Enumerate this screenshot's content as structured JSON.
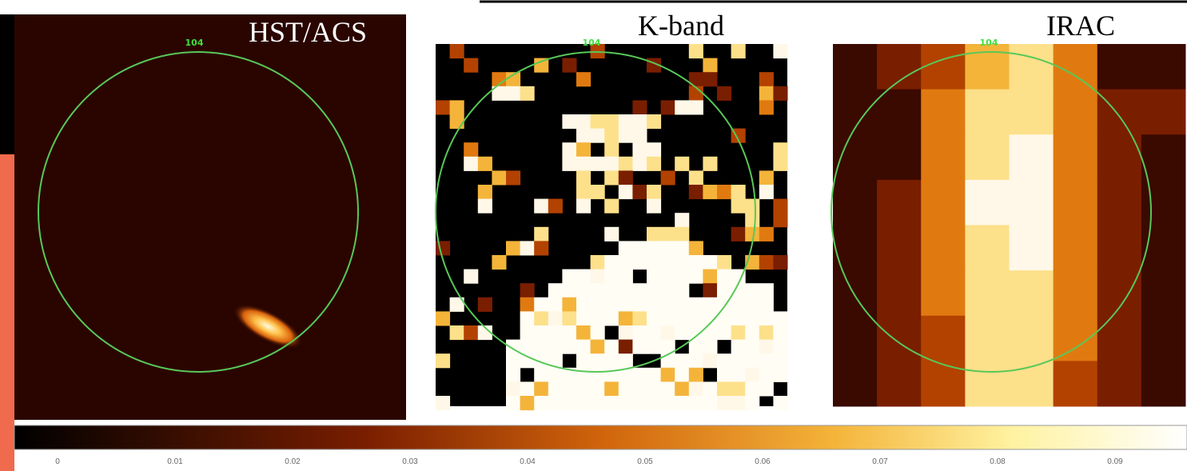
{
  "panels": [
    {
      "title": "HST/ACS",
      "region_label": "104"
    },
    {
      "title": "K-band",
      "region_label": "104"
    },
    {
      "title": "IRAC",
      "region_label": "104"
    }
  ],
  "colorbar": {
    "ticks": [
      0,
      0.01,
      0.02,
      0.03,
      0.04,
      0.05,
      0.06,
      0.07,
      0.08,
      0.09
    ]
  }
}
